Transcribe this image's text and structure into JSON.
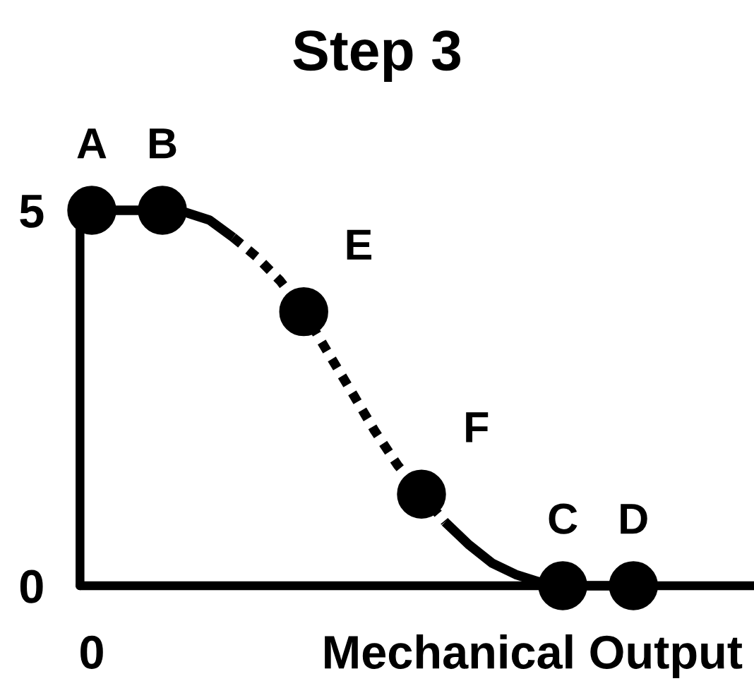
{
  "chart_data": {
    "type": "line",
    "title": "Step 3",
    "xlabel": "Mechanical Output",
    "categories": [
      null,
      null,
      null,
      null,
      null,
      null,
      null,
      null,
      null,
      null,
      null,
      null,
      null,
      null,
      null,
      null,
      null,
      null,
      null,
      null,
      null,
      null,
      null,
      null,
      null,
      null,
      null,
      null,
      null
    ],
    "ylim": [
      0,
      5
    ],
    "yticks": [
      0,
      5
    ],
    "series": [
      {
        "color": "#000000",
        "line_style": "solid",
        "values": [
          5,
          5,
          5,
          5,
          4.97,
          4.87,
          4.64,
          null,
          null,
          null,
          null,
          null,
          null,
          null,
          null,
          null,
          null,
          null,
          null,
          null,
          null,
          null,
          null,
          null,
          null,
          null,
          null,
          null,
          null
        ]
      },
      {
        "color": "#000000",
        "line_style": "dotted",
        "values": [
          null,
          null,
          null,
          null,
          null,
          null,
          4.64,
          4.38,
          4.06,
          3.65,
          3.12,
          2.6,
          2.07,
          1.6,
          1.22,
          0.85,
          null,
          null,
          null,
          null,
          null,
          null,
          null,
          null,
          null,
          null,
          null,
          null,
          null
        ]
      },
      {
        "color": "#000000",
        "line_style": "solid",
        "values": [
          null,
          null,
          null,
          null,
          null,
          null,
          null,
          null,
          null,
          null,
          null,
          null,
          null,
          null,
          null,
          0.85,
          0.55,
          0.3,
          0.15,
          0.05,
          0,
          0,
          0,
          0,
          null,
          null,
          null,
          null,
          null
        ]
      },
      {
        "type": "scatter",
        "color": "#000000",
        "marker": "circle",
        "values": [
          5,
          null,
          null,
          5,
          null,
          null,
          null,
          null,
          null,
          3.65,
          null,
          null,
          null,
          null,
          1.22,
          null,
          null,
          null,
          null,
          null,
          0,
          null,
          null,
          0,
          null,
          null,
          null,
          null,
          null
        ]
      }
    ],
    "annotations": [
      "A",
      "B",
      "E",
      "F",
      "C",
      "D",
      "0"
    ]
  }
}
